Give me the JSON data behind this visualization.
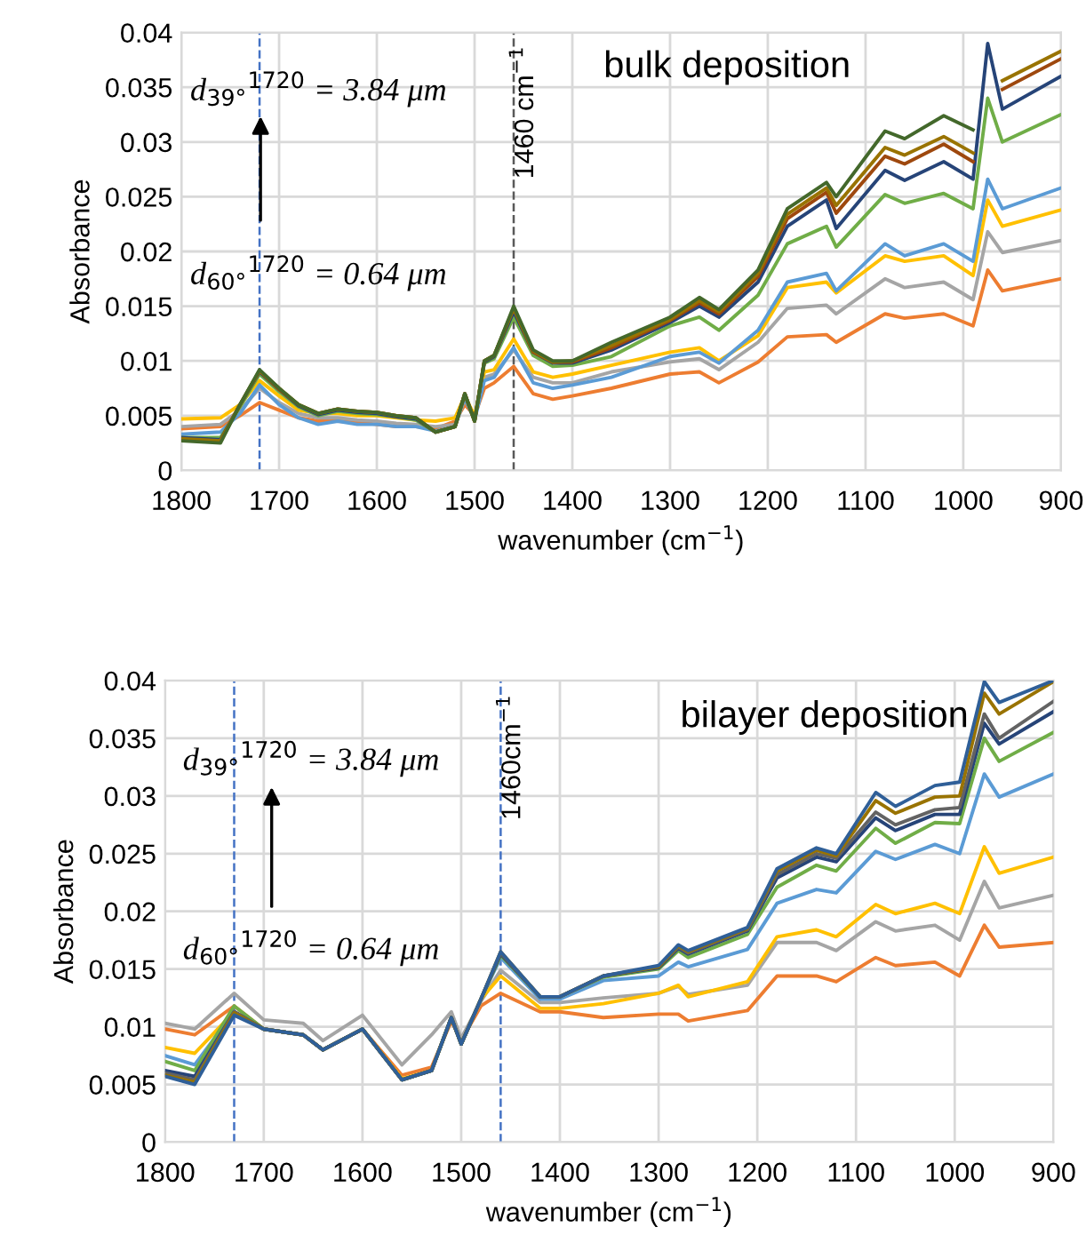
{
  "chart_data": [
    {
      "type": "line",
      "xlabel": "wavenumber (cm$^{−1}$)",
      "ylabel": "Absorbance",
      "grid": true,
      "xlim": [
        1800,
        900
      ],
      "xticks": [
        1800,
        1700,
        1600,
        1500,
        1400,
        1300,
        1200,
        1100,
        1000,
        900
      ],
      "ylim": [
        0,
        0.04
      ],
      "yticks": [
        0,
        0.005,
        0.01,
        0.015,
        0.02,
        0.025,
        0.03,
        0.035,
        0.04
      ],
      "annotations": [
        "bulk deposition",
        "d$_{39°}$$^{1720}$ = 3.84 μm",
        "d$_{60°}$$^{1720}$ = 0.64 μm"
      ],
      "ref_lines": [
        {
          "axis": "x",
          "value": 1720,
          "label": null,
          "color": "#4472c4",
          "line_style": "dashed"
        },
        {
          "axis": "x",
          "value": 1460,
          "label": "1460 cm$^{−1}$",
          "color": "#595959",
          "line_style": "dashed"
        }
      ],
      "x": [
        1800,
        1760,
        1740,
        1720,
        1700,
        1680,
        1660,
        1640,
        1620,
        1600,
        1580,
        1560,
        1540,
        1520,
        1510,
        1500,
        1490,
        1480,
        1460,
        1440,
        1420,
        1400,
        1360,
        1300,
        1270,
        1250,
        1210,
        1180,
        1140,
        1130,
        1080,
        1060,
        1020,
        990,
        975,
        960,
        900
      ],
      "series": [
        {
          "color": "#ed7d31",
          "values": [
            0.0038,
            0.004,
            0.005,
            0.0062,
            0.0055,
            0.0048,
            0.0045,
            0.0045,
            0.0044,
            0.0042,
            0.004,
            0.004,
            0.0038,
            0.0045,
            0.006,
            0.005,
            0.0075,
            0.008,
            0.0095,
            0.007,
            0.0065,
            0.0068,
            0.0075,
            0.0088,
            0.009,
            0.008,
            0.0099,
            0.0122,
            0.0124,
            0.0117,
            0.0143,
            0.0139,
            0.0143,
            0.0132,
            0.0183,
            0.0164,
            0.0175
          ]
        },
        {
          "color": "#a5a5a5",
          "values": [
            0.004,
            0.0042,
            0.0055,
            0.0075,
            0.0062,
            0.0052,
            0.0048,
            0.0048,
            0.0046,
            0.0045,
            0.0043,
            0.0042,
            0.004,
            0.0042,
            0.0065,
            0.0048,
            0.0085,
            0.0088,
            0.011,
            0.0085,
            0.008,
            0.008,
            0.009,
            0.0099,
            0.0102,
            0.0092,
            0.0117,
            0.0148,
            0.0151,
            0.0143,
            0.0175,
            0.0167,
            0.0172,
            0.0156,
            0.0218,
            0.0199,
            0.021
          ]
        },
        {
          "color": "#ffc000",
          "values": [
            0.0047,
            0.0048,
            0.006,
            0.0082,
            0.0068,
            0.0055,
            0.0052,
            0.0052,
            0.005,
            0.005,
            0.0048,
            0.0046,
            0.0045,
            0.0048,
            0.0068,
            0.005,
            0.009,
            0.0092,
            0.012,
            0.009,
            0.0085,
            0.0088,
            0.0096,
            0.0108,
            0.0112,
            0.01,
            0.0123,
            0.0167,
            0.0172,
            0.0162,
            0.0196,
            0.0191,
            0.0196,
            0.0178,
            0.0247,
            0.0223,
            0.0238
          ]
        },
        {
          "color": "#5b9bd5",
          "values": [
            0.0033,
            0.0035,
            0.0052,
            0.0078,
            0.006,
            0.0048,
            0.0042,
            0.0045,
            0.0042,
            0.0042,
            0.004,
            0.004,
            0.0036,
            0.004,
            0.0066,
            0.0046,
            0.0082,
            0.0085,
            0.0112,
            0.008,
            0.0075,
            0.0078,
            0.0085,
            0.0104,
            0.0108,
            0.0098,
            0.0128,
            0.0172,
            0.018,
            0.0164,
            0.0207,
            0.0196,
            0.0207,
            0.0191,
            0.0266,
            0.0239,
            0.0258
          ]
        },
        {
          "color": "#70ad47",
          "values": [
            0.003,
            0.003,
            0.0058,
            0.0088,
            0.0072,
            0.0058,
            0.005,
            0.0054,
            0.0052,
            0.0051,
            0.0049,
            0.0046,
            0.0035,
            0.004,
            0.0069,
            0.0045,
            0.0098,
            0.0102,
            0.014,
            0.0105,
            0.0095,
            0.0096,
            0.0104,
            0.0132,
            0.014,
            0.0128,
            0.016,
            0.0207,
            0.0223,
            0.0204,
            0.0252,
            0.0244,
            0.0253,
            0.0239,
            0.034,
            0.03,
            0.0325
          ]
        },
        {
          "color": "#264478",
          "values": [
            0.003,
            0.0028,
            0.006,
            0.009,
            0.0074,
            0.0059,
            0.0051,
            0.0055,
            0.0053,
            0.0052,
            0.0049,
            0.0047,
            0.0035,
            0.004,
            0.007,
            0.0045,
            0.0099,
            0.0104,
            0.0145,
            0.0108,
            0.0098,
            0.0098,
            0.011,
            0.0135,
            0.015,
            0.014,
            0.0172,
            0.0223,
            0.0247,
            0.0221,
            0.0274,
            0.0265,
            0.0282,
            0.0266,
            0.039,
            0.033,
            0.036
          ]
        },
        {
          "color": "#9e480e",
          "values": [
            0.0028,
            0.0027,
            0.006,
            0.0091,
            0.0074,
            0.006,
            0.0052,
            0.0056,
            0.0054,
            0.0053,
            0.005,
            0.0048,
            0.0035,
            0.004,
            0.007,
            0.0045,
            0.01,
            0.0105,
            0.0148,
            0.0108,
            0.0099,
            0.0099,
            0.0112,
            0.0137,
            0.0153,
            0.0143,
            0.0177,
            0.023,
            0.0254,
            0.0235,
            0.0287,
            0.028,
            0.0298,
            0.0282,
            null,
            0.0348,
            0.0376
          ]
        },
        {
          "color": "#997300",
          "values": [
            0.0029,
            0.0027,
            0.006,
            0.0091,
            0.0075,
            0.006,
            0.0052,
            0.0056,
            0.0054,
            0.0053,
            0.005,
            0.0048,
            0.0035,
            0.004,
            0.007,
            0.0045,
            0.01,
            0.0105,
            0.0148,
            0.0109,
            0.0099,
            0.01,
            0.0114,
            0.0138,
            0.0155,
            0.0145,
            0.018,
            0.0234,
            0.0258,
            0.0242,
            0.0295,
            0.0288,
            0.0305,
            0.029,
            null,
            0.0356,
            0.0383
          ]
        },
        {
          "color": "#43682b",
          "x": [
            1800,
            1760,
            1740,
            1720,
            1700,
            1680,
            1660,
            1640,
            1620,
            1600,
            1580,
            1560,
            1540,
            1520,
            1510,
            1500,
            1490,
            1480,
            1460,
            1440,
            1420,
            1400,
            1360,
            1300,
            1270,
            1250,
            1210,
            1180,
            1140,
            1130,
            1080,
            1060,
            1020,
            990
          ],
          "values": [
            0.0027,
            0.0025,
            0.006,
            0.0092,
            0.0075,
            0.006,
            0.0052,
            0.0056,
            0.0054,
            0.0053,
            0.005,
            0.0048,
            0.0035,
            0.004,
            0.007,
            0.0045,
            0.01,
            0.0105,
            0.015,
            0.011,
            0.01,
            0.01,
            0.0117,
            0.014,
            0.0158,
            0.0147,
            0.0183,
            0.0239,
            0.0263,
            0.025,
            0.031,
            0.0303,
            0.0324,
            0.0311
          ]
        }
      ]
    },
    {
      "type": "line",
      "xlabel": "wavenumber (cm$^{−1}$)",
      "ylabel": "Absorbance",
      "grid": true,
      "xlim": [
        1800,
        900
      ],
      "xticks": [
        1800,
        1700,
        1600,
        1500,
        1400,
        1300,
        1200,
        1100,
        1000,
        900
      ],
      "ylim": [
        0,
        0.04
      ],
      "yticks": [
        0,
        0.005,
        0.01,
        0.015,
        0.02,
        0.025,
        0.03,
        0.035,
        0.04
      ],
      "annotations": [
        "bilayer deposition",
        "d$_{39°}$$^{1720}$ = 3.84 μm",
        "d$_{60°}$$^{1720}$ = 0.64 μm"
      ],
      "ref_lines": [
        {
          "axis": "x",
          "value": 1730,
          "label": null,
          "color": "#4472c4",
          "line_style": "dashed"
        },
        {
          "axis": "x",
          "value": 1460,
          "label": "1460cm$^{−1}$",
          "color": "#4472c4",
          "line_style": "dashed"
        }
      ],
      "x": [
        1800,
        1770,
        1730,
        1700,
        1660,
        1640,
        1600,
        1560,
        1530,
        1510,
        1500,
        1480,
        1460,
        1420,
        1400,
        1356,
        1300,
        1280,
        1270,
        1210,
        1180,
        1140,
        1120,
        1080,
        1060,
        1020,
        995,
        970,
        955,
        900
      ],
      "series": [
        {
          "color": "#ed7d31",
          "values": [
            0.0098,
            0.0093,
            0.0118,
            0.0098,
            0.0093,
            0.008,
            0.0098,
            0.0058,
            0.0065,
            0.0105,
            0.0088,
            0.0118,
            0.0129,
            0.0113,
            0.0113,
            0.0108,
            0.0111,
            0.0111,
            0.0105,
            0.0114,
            0.0144,
            0.0144,
            0.0139,
            0.016,
            0.0153,
            0.0156,
            0.0144,
            0.0188,
            0.0169,
            0.0173
          ]
        },
        {
          "color": "#a5a5a5",
          "values": [
            0.0103,
            0.0098,
            0.0129,
            0.0106,
            0.0103,
            0.0088,
            0.011,
            0.0067,
            0.0093,
            0.0113,
            0.009,
            0.0122,
            0.0149,
            0.0121,
            0.0121,
            0.0125,
            0.0129,
            0.0135,
            0.0128,
            0.0136,
            0.0173,
            0.0173,
            0.0166,
            0.0191,
            0.0183,
            0.0188,
            0.0175,
            0.0226,
            0.0203,
            0.0214
          ]
        },
        {
          "color": "#ffc000",
          "values": [
            0.0082,
            0.0077,
            0.0113,
            0.0098,
            0.0093,
            0.008,
            0.0098,
            0.0055,
            0.0062,
            0.0108,
            0.0085,
            0.0124,
            0.0144,
            0.0116,
            0.0116,
            0.012,
            0.0129,
            0.0136,
            0.0126,
            0.0139,
            0.0178,
            0.0184,
            0.0178,
            0.0206,
            0.0198,
            0.0207,
            0.0198,
            0.0256,
            0.0233,
            0.0247
          ]
        },
        {
          "color": "#5b9bd5",
          "values": [
            0.0075,
            0.0067,
            0.0113,
            0.0098,
            0.0093,
            0.008,
            0.0098,
            0.0054,
            0.0062,
            0.0108,
            0.0085,
            0.0124,
            0.016,
            0.0124,
            0.0124,
            0.014,
            0.0144,
            0.0156,
            0.0152,
            0.0167,
            0.0207,
            0.0219,
            0.0216,
            0.0252,
            0.0245,
            0.0258,
            0.025,
            0.0319,
            0.0299,
            0.0319
          ]
        },
        {
          "color": "#70ad47",
          "values": [
            0.007,
            0.0062,
            0.0118,
            0.0098,
            0.0093,
            0.008,
            0.0098,
            0.0054,
            0.0062,
            0.0108,
            0.0085,
            0.0124,
            0.0162,
            0.0126,
            0.0126,
            0.0143,
            0.015,
            0.0166,
            0.016,
            0.018,
            0.0221,
            0.024,
            0.0235,
            0.0272,
            0.0259,
            0.0277,
            0.0276,
            0.035,
            0.033,
            0.0355
          ]
        },
        {
          "color": "#264478",
          "values": [
            0.0062,
            0.0057,
            0.0113,
            0.0098,
            0.0093,
            0.008,
            0.0098,
            0.0054,
            0.0062,
            0.0108,
            0.0085,
            0.0124,
            0.0163,
            0.0126,
            0.0126,
            0.0144,
            0.0151,
            0.0168,
            0.0163,
            0.0183,
            0.0229,
            0.0247,
            0.0243,
            0.0281,
            0.027,
            0.0284,
            0.0284,
            0.0363,
            0.0345,
            0.0373
          ]
        },
        {
          "color": "#636363",
          "values": [
            0.006,
            0.0054,
            0.0113,
            0.0098,
            0.0093,
            0.008,
            0.0098,
            0.0054,
            0.0062,
            0.0108,
            0.0085,
            0.0124,
            0.0164,
            0.0126,
            0.0126,
            0.0144,
            0.0152,
            0.0169,
            0.0164,
            0.0184,
            0.0232,
            0.025,
            0.0246,
            0.0286,
            0.0275,
            0.0288,
            0.029,
            0.0371,
            0.035,
            0.0382
          ]
        },
        {
          "color": "#997300",
          "values": [
            0.0058,
            0.0052,
            0.0112,
            0.0098,
            0.0093,
            0.008,
            0.0098,
            0.0054,
            0.0062,
            0.0108,
            0.0085,
            0.0124,
            0.0165,
            0.0126,
            0.0126,
            0.0144,
            0.0152,
            0.017,
            0.0165,
            0.0185,
            0.0235,
            0.0253,
            0.0248,
            0.0296,
            0.0285,
            0.0299,
            0.03,
            0.0389,
            0.0371,
            0.0399
          ]
        },
        {
          "color": "#2f5f98",
          "values": [
            0.0057,
            0.005,
            0.011,
            0.0098,
            0.0093,
            0.008,
            0.0098,
            0.0054,
            0.0062,
            0.0108,
            0.0085,
            0.0124,
            0.0165,
            0.0126,
            0.0126,
            0.0144,
            0.0153,
            0.0171,
            0.0166,
            0.0186,
            0.0237,
            0.0255,
            0.025,
            0.0303,
            0.0291,
            0.0309,
            0.0312,
            0.0399,
            0.0381,
            0.04
          ]
        }
      ]
    }
  ]
}
